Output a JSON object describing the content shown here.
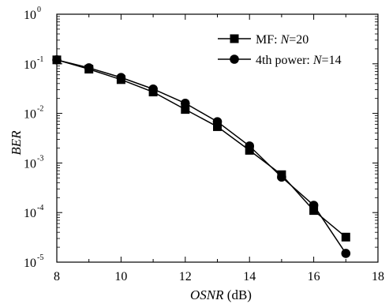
{
  "chart_data": {
    "type": "line",
    "x_axis": {
      "label_italic": "OSNR",
      "label_unit": " (dB)",
      "range": [
        8,
        18
      ],
      "ticks": [
        8,
        10,
        12,
        14,
        16,
        18
      ]
    },
    "y_axis": {
      "label": "BER",
      "scale": "log",
      "range": [
        1e-05,
        1
      ],
      "ticks": [
        {
          "value": 1e-05,
          "base": "10",
          "exp": "-5"
        },
        {
          "value": 0.0001,
          "base": "10",
          "exp": "-4"
        },
        {
          "value": 0.001,
          "base": "10",
          "exp": "-3"
        },
        {
          "value": 0.01,
          "base": "10",
          "exp": "-2"
        },
        {
          "value": 0.1,
          "base": "10",
          "exp": "-1"
        },
        {
          "value": 1,
          "base": "10",
          "exp": "0"
        }
      ]
    },
    "grid": false,
    "legend_placement": "top-right",
    "series": [
      {
        "name_prefix": "MF: ",
        "name_var": "N",
        "name_suffix": "=20",
        "marker": "square",
        "x": [
          8,
          9,
          10,
          11,
          12,
          13,
          14,
          15,
          16,
          17
        ],
        "y": [
          0.12,
          0.078,
          0.048,
          0.027,
          0.012,
          0.0054,
          0.0018,
          0.00058,
          0.00011,
          3.2e-05
        ]
      },
      {
        "name_prefix": "4th power: ",
        "name_var": "N",
        "name_suffix": "=14",
        "marker": "circle",
        "x": [
          8,
          9,
          10,
          11,
          12,
          13,
          14,
          15,
          16,
          17
        ],
        "y": [
          0.12,
          0.083,
          0.053,
          0.031,
          0.016,
          0.0068,
          0.0022,
          0.00052,
          0.00014,
          1.5e-05
        ]
      }
    ]
  }
}
